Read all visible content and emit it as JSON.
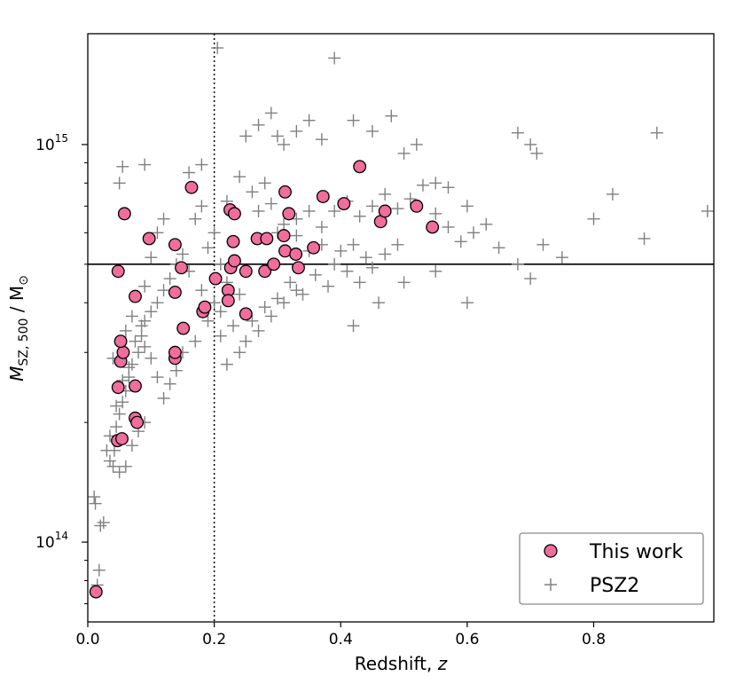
{
  "chart_data": {
    "type": "scatter",
    "xlabel": "Redshift, ",
    "xlabel_var": "z",
    "ylabel_main": "M",
    "ylabel_sub": "SZ, 500",
    "ylabel_unit": " / M",
    "ylabel_unit_sub": "⊙",
    "yscale": "log",
    "xlim": [
      0.0,
      0.99
    ],
    "ylim": [
      63000000000000.0,
      1900000000000000.0
    ],
    "xticks": [
      {
        "value": 0.0,
        "label": "0.0"
      },
      {
        "value": 0.2,
        "label": "0.2"
      },
      {
        "value": 0.4,
        "label": "0.4"
      },
      {
        "value": 0.6,
        "label": "0.6"
      },
      {
        "value": 0.8,
        "label": "0.8"
      }
    ],
    "yticks": [
      {
        "value": 100000000000000.0,
        "label_base": "10",
        "label_exp": "14"
      },
      {
        "value": 1000000000000000.0,
        "label_base": "10",
        "label_exp": "15"
      }
    ],
    "reference_lines": [
      {
        "orientation": "vertical",
        "value": 0.2,
        "style": "dotted"
      },
      {
        "orientation": "horizontal",
        "value": 500000000000000.0,
        "style": "solid"
      }
    ],
    "legend": {
      "placement": "lower-right",
      "entries": [
        {
          "label": "This work",
          "marker": "circle"
        },
        {
          "label": "PSZ2",
          "marker": "plus"
        }
      ]
    },
    "series": [
      {
        "name": "This work",
        "marker": "circle",
        "color": "#f06d9c",
        "edgecolor": "#000000",
        "points": [
          [
            0.013,
            75000000000000.0
          ],
          [
            0.047,
            180000000000000.0
          ],
          [
            0.054,
            182000000000000.0
          ],
          [
            0.048,
            245000000000000.0
          ],
          [
            0.075,
            205000000000000.0
          ],
          [
            0.078,
            200000000000000.0
          ],
          [
            0.075,
            247000000000000.0
          ],
          [
            0.052,
            285000000000000.0
          ],
          [
            0.056,
            300000000000000.0
          ],
          [
            0.052,
            320000000000000.0
          ],
          [
            0.048,
            480000000000000.0
          ],
          [
            0.075,
            415000000000000.0
          ],
          [
            0.058,
            670000000000000.0
          ],
          [
            0.097,
            580000000000000.0
          ],
          [
            0.138,
            290000000000000.0
          ],
          [
            0.138,
            300000000000000.0
          ],
          [
            0.151,
            345000000000000.0
          ],
          [
            0.138,
            425000000000000.0
          ],
          [
            0.148,
            490000000000000.0
          ],
          [
            0.138,
            560000000000000.0
          ],
          [
            0.164,
            780000000000000.0
          ],
          [
            0.182,
            380000000000000.0
          ],
          [
            0.185,
            390000000000000.0
          ],
          [
            0.202,
            460000000000000.0
          ],
          [
            0.222,
            430000000000000.0
          ],
          [
            0.222,
            405000000000000.0
          ],
          [
            0.226,
            490000000000000.0
          ],
          [
            0.225,
            685000000000000.0
          ],
          [
            0.232,
            670000000000000.0
          ],
          [
            0.23,
            570000000000000.0
          ],
          [
            0.232,
            510000000000000.0
          ],
          [
            0.25,
            480000000000000.0
          ],
          [
            0.25,
            375000000000000.0
          ],
          [
            0.268,
            580000000000000.0
          ],
          [
            0.283,
            580000000000000.0
          ],
          [
            0.28,
            480000000000000.0
          ],
          [
            0.294,
            500000000000000.0
          ],
          [
            0.31,
            590000000000000.0
          ],
          [
            0.312,
            540000000000000.0
          ],
          [
            0.312,
            760000000000000.0
          ],
          [
            0.318,
            670000000000000.0
          ],
          [
            0.329,
            530000000000000.0
          ],
          [
            0.333,
            490000000000000.0
          ],
          [
            0.357,
            550000000000000.0
          ],
          [
            0.372,
            740000000000000.0
          ],
          [
            0.405,
            710000000000000.0
          ],
          [
            0.43,
            880000000000000.0
          ],
          [
            0.463,
            640000000000000.0
          ],
          [
            0.47,
            680000000000000.0
          ],
          [
            0.52,
            700000000000000.0
          ],
          [
            0.545,
            620000000000000.0
          ]
        ]
      },
      {
        "name": "PSZ2",
        "marker": "plus",
        "color": "#808080",
        "points": [
          [
            0.01,
            130000000000000.0
          ],
          [
            0.012,
            125000000000000.0
          ],
          [
            0.02,
            110000000000000.0
          ],
          [
            0.025,
            112000000000000.0
          ],
          [
            0.015,
            78000000000000.0
          ],
          [
            0.018,
            85000000000000.0
          ],
          [
            0.035,
            160000000000000.0
          ],
          [
            0.04,
            155000000000000.0
          ],
          [
            0.042,
            170000000000000.0
          ],
          [
            0.045,
            195000000000000.0
          ],
          [
            0.05,
            210000000000000.0
          ],
          [
            0.055,
            225000000000000.0
          ],
          [
            0.06,
            240000000000000.0
          ],
          [
            0.065,
            260000000000000.0
          ],
          [
            0.07,
            280000000000000.0
          ],
          [
            0.08,
            300000000000000.0
          ],
          [
            0.085,
            330000000000000.0
          ],
          [
            0.09,
            360000000000000.0
          ],
          [
            0.1,
            380000000000000.0
          ],
          [
            0.11,
            400000000000000.0
          ],
          [
            0.12,
            430000000000000.0
          ],
          [
            0.13,
            460000000000000.0
          ],
          [
            0.04,
            290000000000000.0
          ],
          [
            0.06,
            340000000000000.0
          ],
          [
            0.07,
            370000000000000.0
          ],
          [
            0.09,
            440000000000000.0
          ],
          [
            0.1,
            520000000000000.0
          ],
          [
            0.11,
            600000000000000.0
          ],
          [
            0.12,
            650000000000000.0
          ],
          [
            0.05,
            800000000000000.0
          ],
          [
            0.055,
            880000000000000.0
          ],
          [
            0.09,
            890000000000000.0
          ],
          [
            0.16,
            850000000000000.0
          ],
          [
            0.18,
            890000000000000.0
          ],
          [
            0.205,
            1750000000000000.0
          ],
          [
            0.17,
            650000000000000.0
          ],
          [
            0.18,
            700000000000000.0
          ],
          [
            0.19,
            550000000000000.0
          ],
          [
            0.2,
            600000000000000.0
          ],
          [
            0.21,
            500000000000000.0
          ],
          [
            0.22,
            450000000000000.0
          ],
          [
            0.24,
            420000000000000.0
          ],
          [
            0.26,
            360000000000000.0
          ],
          [
            0.28,
            390000000000000.0
          ],
          [
            0.3,
            410000000000000.0
          ],
          [
            0.32,
            450000000000000.0
          ],
          [
            0.34,
            420000000000000.0
          ],
          [
            0.36,
            470000000000000.0
          ],
          [
            0.38,
            440000000000000.0
          ],
          [
            0.4,
            540000000000000.0
          ],
          [
            0.42,
            560000000000000.0
          ],
          [
            0.44,
            520000000000000.0
          ],
          [
            0.25,
            1050000000000000.0
          ],
          [
            0.27,
            1120000000000000.0
          ],
          [
            0.29,
            1200000000000000.0
          ],
          [
            0.3,
            1050000000000000.0
          ],
          [
            0.31,
            1000000000000000.0
          ],
          [
            0.33,
            1080000000000000.0
          ],
          [
            0.35,
            1150000000000000.0
          ],
          [
            0.37,
            1030000000000000.0
          ],
          [
            0.39,
            1650000000000000.0
          ],
          [
            0.42,
            1150000000000000.0
          ],
          [
            0.45,
            1080000000000000.0
          ],
          [
            0.48,
            1180000000000000.0
          ],
          [
            0.5,
            950000000000000.0
          ],
          [
            0.52,
            1000000000000000.0
          ],
          [
            0.55,
            800000000000000.0
          ],
          [
            0.57,
            780000000000000.0
          ],
          [
            0.6,
            700000000000000.0
          ],
          [
            0.63,
            630000000000000.0
          ],
          [
            0.65,
            550000000000000.0
          ],
          [
            0.68,
            500000000000000.0
          ],
          [
            0.7,
            460000000000000.0
          ],
          [
            0.72,
            560000000000000.0
          ],
          [
            0.75,
            520000000000000.0
          ],
          [
            0.8,
            650000000000000.0
          ],
          [
            0.83,
            750000000000000.0
          ],
          [
            0.88,
            580000000000000.0
          ],
          [
            0.9,
            1070000000000000.0
          ],
          [
            0.98,
            680000000000000.0
          ],
          [
            0.7,
            1000000000000000.0
          ],
          [
            0.71,
            950000000000000.0
          ],
          [
            0.68,
            1070000000000000.0
          ],
          [
            0.6,
            400000000000000.0
          ],
          [
            0.55,
            480000000000000.0
          ],
          [
            0.5,
            450000000000000.0
          ],
          [
            0.46,
            400000000000000.0
          ],
          [
            0.42,
            350000000000000.0
          ],
          [
            0.24,
            300000000000000.0
          ],
          [
            0.22,
            280000000000000.0
          ],
          [
            0.21,
            330000000000000.0
          ],
          [
            0.19,
            360000000000000.0
          ],
          [
            0.17,
            320000000000000.0
          ],
          [
            0.15,
            300000000000000.0
          ],
          [
            0.14,
            270000000000000.0
          ],
          [
            0.13,
            250000000000000.0
          ],
          [
            0.12,
            230000000000000.0
          ],
          [
            0.11,
            260000000000000.0
          ],
          [
            0.1,
            290000000000000.0
          ],
          [
            0.09,
            310000000000000.0
          ],
          [
            0.3,
            600000000000000.0
          ],
          [
            0.33,
            650000000000000.0
          ],
          [
            0.35,
            680000000000000.0
          ],
          [
            0.37,
            620000000000000.0
          ],
          [
            0.39,
            680000000000000.0
          ],
          [
            0.41,
            720000000000000.0
          ],
          [
            0.43,
            660000000000000.0
          ],
          [
            0.45,
            700000000000000.0
          ],
          [
            0.47,
            750000000000000.0
          ],
          [
            0.49,
            690000000000000.0
          ],
          [
            0.51,
            730000000000000.0
          ],
          [
            0.53,
            790000000000000.0
          ],
          [
            0.55,
            670000000000000.0
          ],
          [
            0.57,
            620000000000000.0
          ],
          [
            0.59,
            570000000000000.0
          ],
          [
            0.61,
            600000000000000.0
          ],
          [
            0.26,
            760000000000000.0
          ],
          [
            0.28,
            800000000000000.0
          ],
          [
            0.24,
            830000000000000.0
          ],
          [
            0.22,
            720000000000000.0
          ],
          [
            0.27,
            680000000000000.0
          ],
          [
            0.29,
            710000000000000.0
          ],
          [
            0.31,
            630000000000000.0
          ],
          [
            0.33,
            590000000000000.0
          ],
          [
            0.35,
            540000000000000.0
          ],
          [
            0.37,
            560000000000000.0
          ],
          [
            0.39,
            500000000000000.0
          ],
          [
            0.41,
            480000000000000.0
          ],
          [
            0.43,
            450000000000000.0
          ],
          [
            0.45,
            490000000000000.0
          ],
          [
            0.47,
            530000000000000.0
          ],
          [
            0.49,
            560000000000000.0
          ],
          [
            0.16,
            480000000000000.0
          ],
          [
            0.15,
            530000000000000.0
          ],
          [
            0.14,
            500000000000000.0
          ],
          [
            0.18,
            430000000000000.0
          ],
          [
            0.2,
            400000000000000.0
          ],
          [
            0.21,
            380000000000000.0
          ],
          [
            0.23,
            350000000000000.0
          ],
          [
            0.25,
            320000000000000.0
          ],
          [
            0.27,
            340000000000000.0
          ],
          [
            0.29,
            370000000000000.0
          ],
          [
            0.31,
            400000000000000.0
          ],
          [
            0.33,
            430000000000000.0
          ],
          [
            0.06,
            155000000000000.0
          ],
          [
            0.05,
            150000000000000.0
          ],
          [
            0.07,
            175000000000000.0
          ],
          [
            0.08,
            190000000000000.0
          ],
          [
            0.09,
            200000000000000.0
          ],
          [
            0.03,
            170000000000000.0
          ],
          [
            0.035,
            185000000000000.0
          ],
          [
            0.045,
            220000000000000.0
          ],
          [
            0.055,
            255000000000000.0
          ],
          [
            0.065,
            275000000000000.0
          ],
          [
            0.075,
            320000000000000.0
          ],
          [
            0.085,
            350000000000000.0
          ]
        ]
      }
    ]
  }
}
